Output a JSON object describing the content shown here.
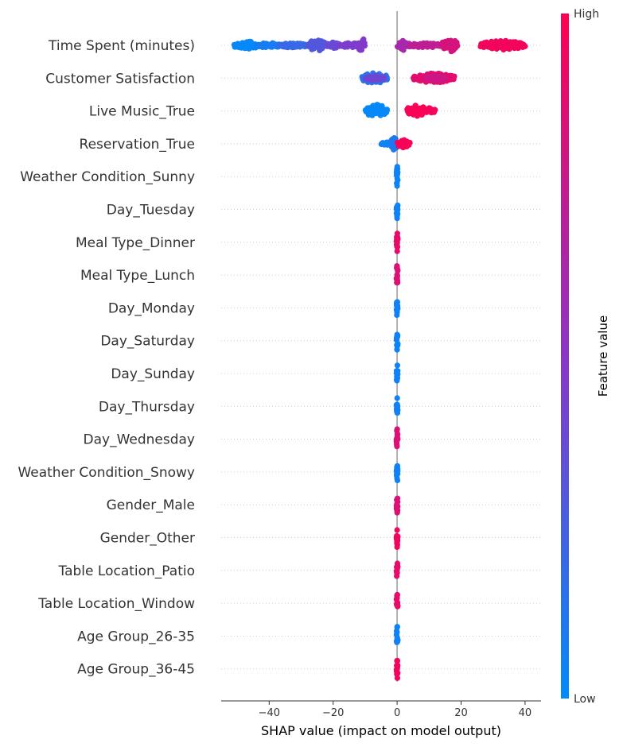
{
  "chart_data": {
    "type": "scatter",
    "subtype": "shap-beeswarm",
    "title": "",
    "xlabel": "SHAP value (impact on model output)",
    "ylabel": "",
    "xlim": [
      -55,
      45
    ],
    "xticks": [
      {
        "value": -40,
        "label": "−40"
      },
      {
        "value": -20,
        "label": "−20"
      },
      {
        "value": 0,
        "label": "0"
      },
      {
        "value": 20,
        "label": "20"
      },
      {
        "value": 40,
        "label": "40"
      }
    ],
    "colorbar": {
      "title": "Feature value",
      "high_label": "High",
      "low_label": "Low",
      "low_color": "#008bfb",
      "high_color": "#ff0051"
    },
    "features": [
      {
        "name": "Time Spent (minutes)",
        "clusters": [
          {
            "min": -51,
            "max": -43,
            "fv": 0.02,
            "amp": 5
          },
          {
            "min": -44,
            "max": -36,
            "fv": 0.08,
            "amp": 3
          },
          {
            "min": -37,
            "max": -28,
            "fv": 0.2,
            "amp": 3
          },
          {
            "min": -28,
            "max": -22,
            "fv": 0.3,
            "amp": 7
          },
          {
            "min": -22,
            "max": -18,
            "fv": 0.38,
            "amp": 4
          },
          {
            "min": -18,
            "max": -11,
            "fv": 0.45,
            "amp": 3
          },
          {
            "min": -12,
            "max": -10,
            "fv": 0.47,
            "amp": 10
          },
          {
            "min": 0,
            "max": 4,
            "fv": 0.62,
            "amp": 6
          },
          {
            "min": 4,
            "max": 14,
            "fv": 0.72,
            "amp": 3
          },
          {
            "min": 14,
            "max": 19,
            "fv": 0.82,
            "amp": 9
          },
          {
            "min": 26,
            "max": 40,
            "fv": 0.95,
            "amp": 6
          }
        ]
      },
      {
        "name": "Customer Satisfaction",
        "clusters": [
          {
            "min": -11,
            "max": -3,
            "fv": 0.15,
            "amp": 7
          },
          {
            "min": -10,
            "max": -4,
            "fv": 0.4,
            "amp": 3
          },
          {
            "min": 5,
            "max": 18,
            "fv": 0.88,
            "amp": 6
          },
          {
            "min": 9,
            "max": 15,
            "fv": 0.78,
            "amp": 3
          }
        ]
      },
      {
        "name": "Live Music_True",
        "clusters": [
          {
            "min": -10,
            "max": -3,
            "fv": 0.02,
            "amp": 8
          },
          {
            "min": 3,
            "max": 9,
            "fv": 0.98,
            "amp": 8
          },
          {
            "min": 9,
            "max": 12,
            "fv": 0.96,
            "amp": 4
          }
        ]
      },
      {
        "name": "Reservation_True",
        "clusters": [
          {
            "min": -5,
            "max": -1,
            "fv": 0.05,
            "amp": 2
          },
          {
            "min": -2,
            "max": 0,
            "fv": 0.1,
            "amp": 8
          },
          {
            "min": 0,
            "max": 4,
            "fv": 0.97,
            "amp": 5
          }
        ]
      },
      {
        "name": "Weather Condition_Sunny",
        "clusters": [
          {
            "min": -0.2,
            "max": 0.2,
            "fv": 0.05,
            "amp": 13
          }
        ]
      },
      {
        "name": "Day_Tuesday",
        "clusters": [
          {
            "min": -0.2,
            "max": 0.2,
            "fv": 0.05,
            "amp": 13
          }
        ]
      },
      {
        "name": "Meal Type_Dinner",
        "clusters": [
          {
            "min": -0.2,
            "max": 0.2,
            "fv": 0.9,
            "amp": 13
          }
        ]
      },
      {
        "name": "Meal Type_Lunch",
        "clusters": [
          {
            "min": -0.2,
            "max": 0.2,
            "fv": 0.85,
            "amp": 13
          }
        ]
      },
      {
        "name": "Day_Monday",
        "clusters": [
          {
            "min": -0.2,
            "max": 0.2,
            "fv": 0.05,
            "amp": 13
          }
        ]
      },
      {
        "name": "Day_Saturday",
        "clusters": [
          {
            "min": -0.2,
            "max": 0.2,
            "fv": 0.05,
            "amp": 13
          }
        ]
      },
      {
        "name": "Day_Sunday",
        "clusters": [
          {
            "min": -0.2,
            "max": 0.2,
            "fv": 0.05,
            "amp": 13
          }
        ]
      },
      {
        "name": "Day_Thursday",
        "clusters": [
          {
            "min": -0.2,
            "max": 0.2,
            "fv": 0.05,
            "amp": 13
          }
        ]
      },
      {
        "name": "Day_Wednesday",
        "clusters": [
          {
            "min": -0.2,
            "max": 0.2,
            "fv": 0.85,
            "amp": 13
          }
        ]
      },
      {
        "name": "Weather Condition_Snowy",
        "clusters": [
          {
            "min": -0.2,
            "max": 0.2,
            "fv": 0.05,
            "amp": 13
          }
        ]
      },
      {
        "name": "Gender_Male",
        "clusters": [
          {
            "min": -0.2,
            "max": 0.2,
            "fv": 0.85,
            "amp": 13
          }
        ]
      },
      {
        "name": "Gender_Other",
        "clusters": [
          {
            "min": -0.2,
            "max": 0.2,
            "fv": 0.95,
            "amp": 13
          }
        ]
      },
      {
        "name": "Table Location_Patio",
        "clusters": [
          {
            "min": -0.2,
            "max": 0.2,
            "fv": 0.9,
            "amp": 13
          }
        ]
      },
      {
        "name": "Table Location_Window",
        "clusters": [
          {
            "min": -0.2,
            "max": 0.2,
            "fv": 0.9,
            "amp": 13
          }
        ]
      },
      {
        "name": "Age Group_26-35",
        "clusters": [
          {
            "min": -0.2,
            "max": 0.2,
            "fv": 0.05,
            "amp": 13
          }
        ]
      },
      {
        "name": "Age Group_36-45",
        "clusters": [
          {
            "min": -0.2,
            "max": 0.2,
            "fv": 0.95,
            "amp": 13
          }
        ]
      }
    ]
  }
}
